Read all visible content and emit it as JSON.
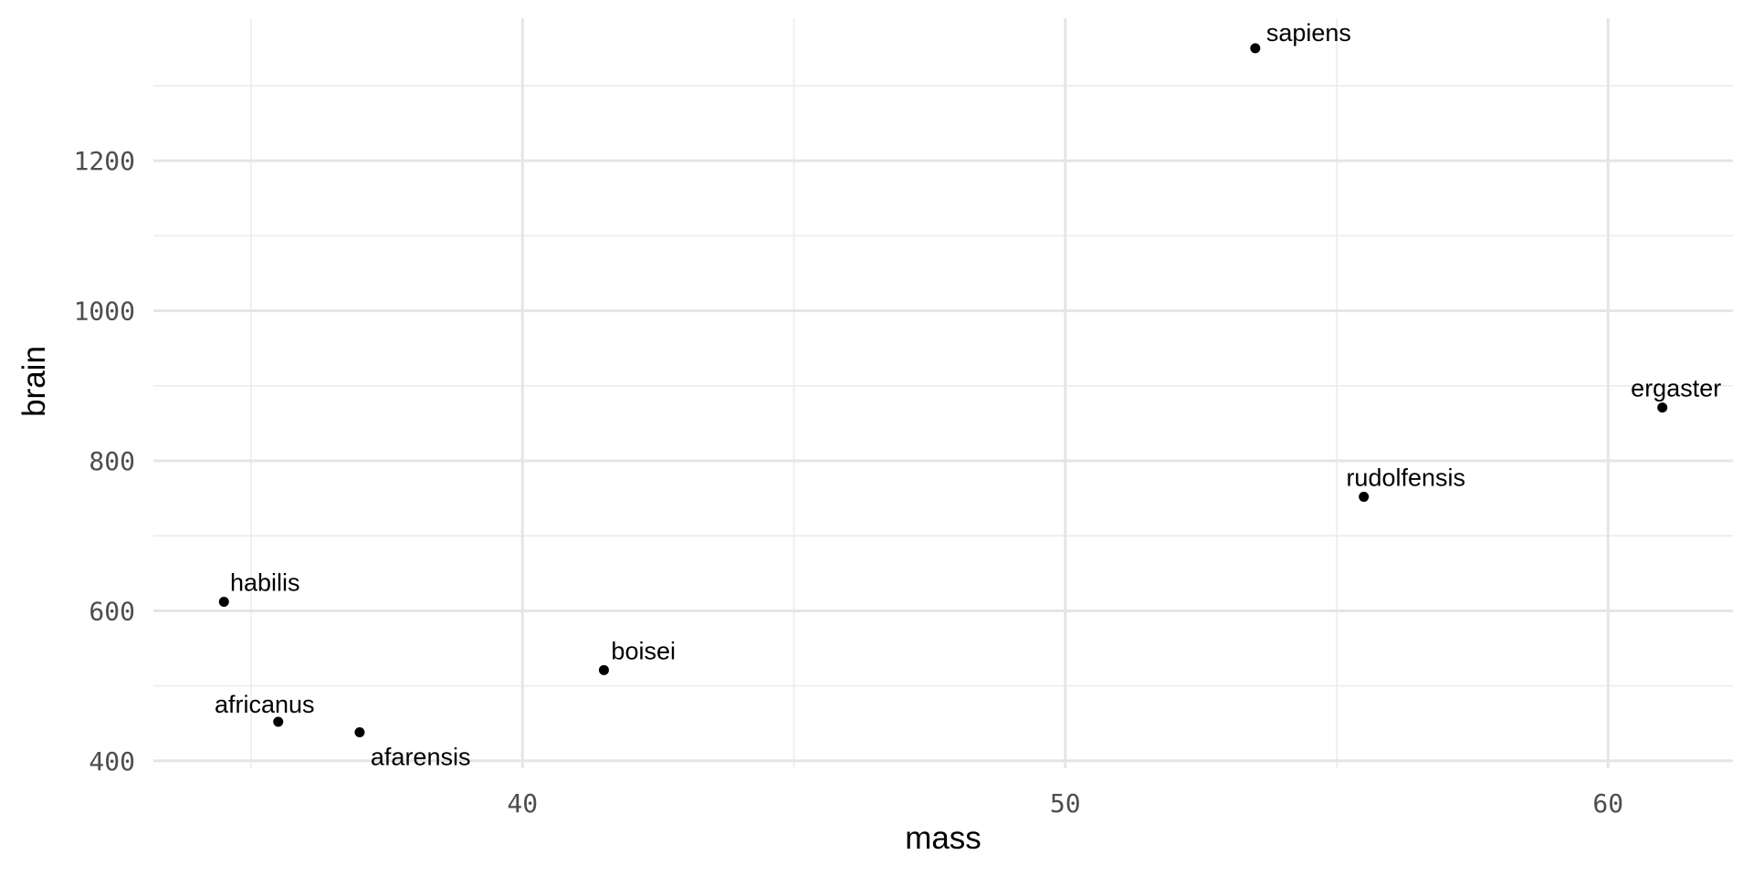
{
  "chart_data": {
    "type": "scatter",
    "title": "",
    "xlabel": "mass",
    "ylabel": "brain",
    "xlim": [
      33.2,
      62.3
    ],
    "ylim": [
      390,
      1390
    ],
    "x_ticks": [
      40,
      50,
      60
    ],
    "x_tick_labels": [
      "40",
      "50",
      "60"
    ],
    "x_minor_ticks": [
      35,
      45,
      55
    ],
    "y_ticks": [
      400,
      600,
      800,
      1000,
      1200
    ],
    "y_tick_labels": [
      "400",
      "600",
      "800",
      "1000",
      "1200"
    ],
    "y_minor_ticks": [
      500,
      700,
      900,
      1100,
      1300
    ],
    "grid": true,
    "point_color": "#000000",
    "points": [
      {
        "name": "afarensis",
        "x": 37.0,
        "y": 438
      },
      {
        "name": "africanus",
        "x": 35.5,
        "y": 452
      },
      {
        "name": "habilis",
        "x": 34.5,
        "y": 612
      },
      {
        "name": "boisei",
        "x": 41.5,
        "y": 521
      },
      {
        "name": "rudolfensis",
        "x": 55.5,
        "y": 752
      },
      {
        "name": "ergaster",
        "x": 61.0,
        "y": 871
      },
      {
        "name": "sapiens",
        "x": 53.5,
        "y": 1350
      }
    ]
  }
}
